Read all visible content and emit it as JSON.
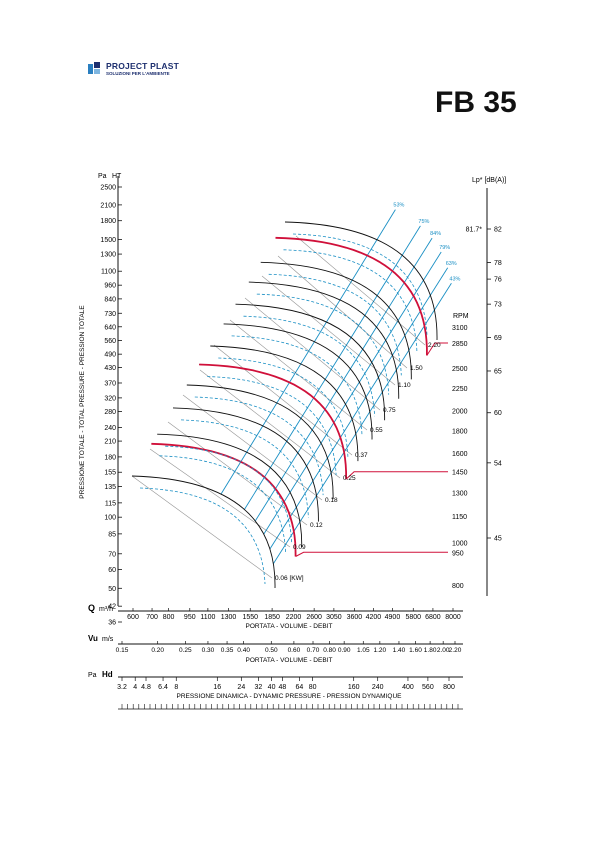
{
  "brand": {
    "name": "PROJECT PLAST",
    "tagline": "SOLUZIONI PER L'AMBIENTE"
  },
  "model": "FB 35",
  "chart_data": {
    "type": "line",
    "title": "",
    "pressure_axis": {
      "unit_label": "Pa",
      "symbol": "HT",
      "title": "PRESSIONE TOTALE - TOTAL PRESSURE - PRESSION TOTALE",
      "ticks": [
        36,
        42,
        50,
        60,
        70,
        85,
        100,
        115,
        135,
        155,
        180,
        210,
        240,
        280,
        320,
        370,
        430,
        490,
        560,
        640,
        730,
        840,
        960,
        1100,
        1300,
        1500,
        1800,
        2100,
        2500
      ]
    },
    "noise_axis": {
      "title": "Lp* [dB(A)]",
      "ticks": [
        45,
        54,
        60,
        65,
        69,
        73,
        76,
        78,
        82
      ],
      "max_label": "81.7*"
    },
    "volume_axis": {
      "symbol": "Q",
      "unit_label": "m³/h",
      "title": "PORTATA - VOLUME - DEBIT",
      "ticks": [
        600,
        700,
        800,
        950,
        1100,
        1300,
        1550,
        1850,
        2200,
        2600,
        3050,
        3600,
        4200,
        4900,
        5800,
        6800,
        8000
      ]
    },
    "velocity_axis": {
      "symbol": "Vu",
      "unit_label": "m/s",
      "title": "PORTATA - VOLUME - DEBIT",
      "ticks": [
        "0.15",
        "0.20",
        "0.25",
        "0.30",
        "0.35",
        "0.40",
        "0.50",
        "0.60",
        "0.70",
        "0.80",
        "0.90",
        "1.05",
        "1.20",
        "1.40",
        "1.60",
        "1.80",
        "2.00",
        "2.20"
      ]
    },
    "dynamic_axis": {
      "unit_label": "Pa",
      "symbol": "Hd",
      "title": "PRESSIONE DINAMICA - DYNAMIC PRESSURE - PRESSION DYNAMIQUE",
      "ticks": [
        "3.2",
        "4",
        "4.8",
        "6.4",
        "8",
        "16",
        "24",
        "32",
        "40",
        "48",
        "64",
        "80",
        "160",
        "240",
        "400",
        "560",
        "800"
      ]
    },
    "rpm": {
      "label": "RPM",
      "values": [
        800,
        950,
        1000,
        1150,
        1300,
        1450,
        1600,
        1800,
        2000,
        2250,
        2500,
        2850,
        3100
      ],
      "highlighted": [
        950,
        1450,
        2850
      ]
    },
    "power": {
      "unit": "[KW]",
      "values": [
        "0.06",
        "0.09",
        "0.12",
        "0.18",
        "0.25",
        "0.37",
        "0.55",
        "0.75",
        "1.10",
        "1.50",
        "2.20"
      ]
    },
    "efficiency_lines": [
      "53%",
      "75%",
      "84%",
      "79%",
      "63%",
      "43%"
    ],
    "colors": {
      "curve": "#111111",
      "efficiency": "#1a8fc4",
      "highlight": "#d0103a",
      "axis": "#111111"
    }
  }
}
